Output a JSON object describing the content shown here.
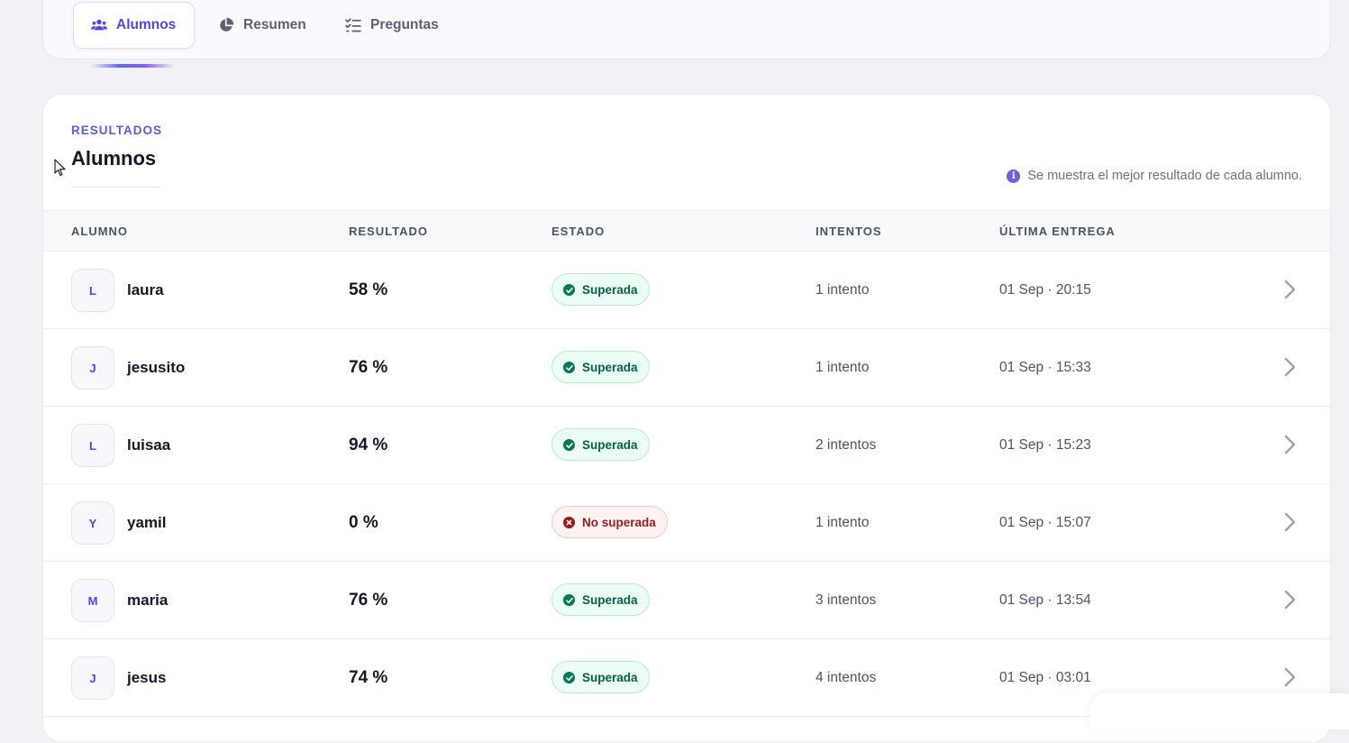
{
  "tabs": [
    {
      "label": "Alumnos",
      "icon": "users-icon",
      "active": true
    },
    {
      "label": "Resumen",
      "icon": "pie-chart-icon",
      "active": false
    },
    {
      "label": "Preguntas",
      "icon": "list-check-icon",
      "active": false
    }
  ],
  "card": {
    "eyebrow": "RESULTADOS",
    "title": "Alumnos",
    "note": "Se muestra el mejor resultado de cada alumno.",
    "note_icon": "info-icon"
  },
  "table": {
    "headers": {
      "alumno": "ALUMNO",
      "resultado": "RESULTADO",
      "estado": "ESTADO",
      "intentos": "INTENTOS",
      "ultima": "ÚLTIMA ENTREGA"
    },
    "rows": [
      {
        "initial": "L",
        "name": "laura",
        "result": "58 %",
        "status": "Superada",
        "status_type": "ok",
        "attempts": "1 intento",
        "last": "01 Sep · 20:15"
      },
      {
        "initial": "J",
        "name": "jesusito",
        "result": "76 %",
        "status": "Superada",
        "status_type": "ok",
        "attempts": "1 intento",
        "last": "01 Sep · 15:33"
      },
      {
        "initial": "L",
        "name": "luisaa",
        "result": "94 %",
        "status": "Superada",
        "status_type": "ok",
        "attempts": "2 intentos",
        "last": "01 Sep · 15:23"
      },
      {
        "initial": "Y",
        "name": "yamil",
        "result": "0 %",
        "status": "No superada",
        "status_type": "fail",
        "attempts": "1 intento",
        "last": "01 Sep · 15:07"
      },
      {
        "initial": "M",
        "name": "maria",
        "result": "76 %",
        "status": "Superada",
        "status_type": "ok",
        "attempts": "3 intentos",
        "last": "01 Sep · 13:54"
      },
      {
        "initial": "J",
        "name": "jesus",
        "result": "74 %",
        "status": "Superada",
        "status_type": "ok",
        "attempts": "4 intentos",
        "last": "01 Sep · 03:01"
      }
    ]
  },
  "colors": {
    "accent": "#4f46e5",
    "success_bg": "#ecfdf3",
    "success_text": "#065f46",
    "danger_bg": "#fef2f2",
    "danger_text": "#991b1b"
  }
}
